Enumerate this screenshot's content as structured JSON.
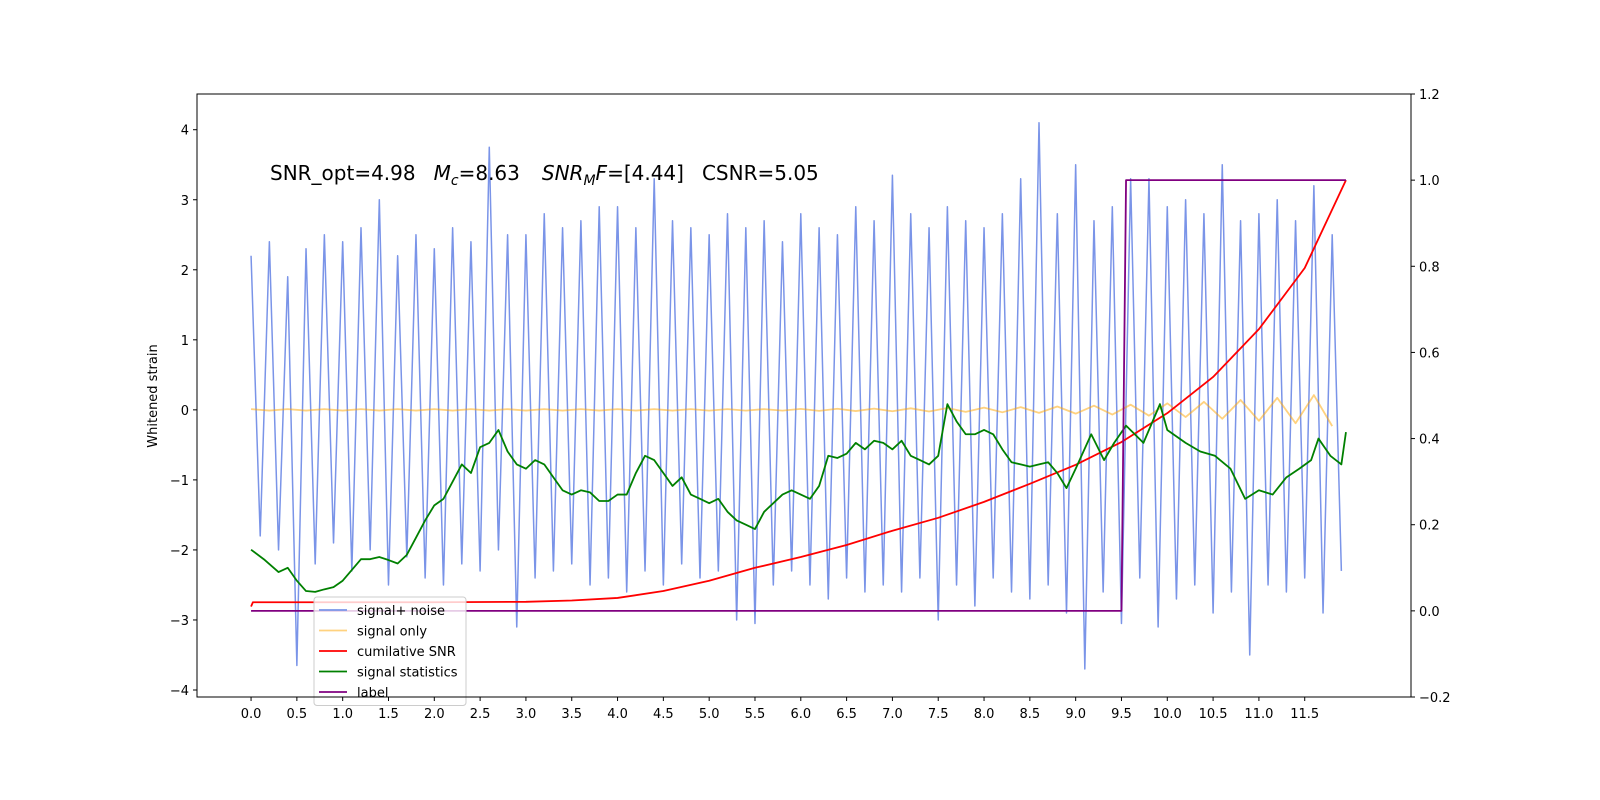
{
  "chart_data": {
    "type": "line",
    "ylabel": "Whitened strain",
    "xlim": [
      -0.59,
      12.66
    ],
    "ylim": [
      -4.1,
      4.51
    ],
    "y2lim": [
      -0.2,
      1.2
    ],
    "xticks": [
      {
        "value": 0,
        "label": "0.0"
      },
      0.5,
      {
        "value": 1,
        "label": "1.0"
      },
      1.5,
      {
        "value": 2,
        "label": "2.0"
      },
      2.5,
      {
        "value": 3,
        "label": "3.0"
      },
      3.5,
      {
        "value": 4,
        "label": "4.0"
      },
      4.5,
      {
        "value": 5,
        "label": "5.0"
      },
      5.5,
      {
        "value": 6,
        "label": "6.0"
      },
      6.5,
      {
        "value": 7,
        "label": "7.0"
      },
      7.5,
      {
        "value": 8,
        "label": "8.0"
      },
      8.5,
      {
        "value": 9,
        "label": "9.0"
      },
      9.5,
      {
        "value": 10,
        "label": "10.0"
      },
      10.5,
      {
        "value": 11,
        "label": "11.0"
      },
      11.5
    ],
    "yticks": [
      {
        "value": -4,
        "label": "−4"
      },
      {
        "value": -3,
        "label": "−3"
      },
      {
        "value": -2,
        "label": "−2"
      },
      {
        "value": -1,
        "label": "−1"
      },
      0,
      1,
      2,
      3,
      4
    ],
    "y2ticks": [
      {
        "value": -0.2,
        "label": "−0.2"
      },
      {
        "value": 0,
        "label": "0.0"
      },
      0.2,
      0.4,
      0.6,
      0.8,
      {
        "value": 1,
        "label": "1.0"
      },
      1.2
    ],
    "annotation": [
      "SNR_opt=4.98",
      "M",
      "c",
      "=8.63",
      "SNR",
      "M",
      "F",
      "=[4.44]",
      "CSNR=5.05"
    ],
    "legend": "lower left",
    "series": [
      {
        "name": "signal+ noise",
        "color": "#7a94e8",
        "x": [
          0,
          0.1,
          0.2,
          0.3,
          0.4,
          0.5,
          0.6,
          0.7,
          0.8,
          0.9,
          1,
          1.1,
          1.2,
          1.3,
          1.4,
          1.5,
          1.6,
          1.7,
          1.8,
          1.9,
          2,
          2.1,
          2.2,
          2.3,
          2.4,
          2.5,
          2.6,
          2.7,
          2.8,
          2.9,
          3,
          3.1,
          3.2,
          3.3,
          3.4,
          3.5,
          3.6,
          3.7,
          3.8,
          3.9,
          4,
          4.1,
          4.2,
          4.3,
          4.4,
          4.5,
          4.6,
          4.7,
          4.8,
          4.9,
          5,
          5.1,
          5.2,
          5.3,
          5.4,
          5.5,
          5.6,
          5.7,
          5.8,
          5.9,
          6,
          6.1,
          6.2,
          6.3,
          6.4,
          6.5,
          6.6,
          6.7,
          6.8,
          6.9,
          7,
          7.1,
          7.2,
          7.3,
          7.4,
          7.5,
          7.6,
          7.7,
          7.8,
          7.9,
          8,
          8.1,
          8.2,
          8.3,
          8.4,
          8.5,
          8.6,
          8.7,
          8.8,
          8.9,
          9,
          9.1,
          9.2,
          9.3,
          9.4,
          9.5,
          9.6,
          9.7,
          9.8,
          9.9,
          10,
          10.1,
          10.2,
          10.3,
          10.4,
          10.5,
          10.6,
          10.7,
          10.8,
          10.9,
          11,
          11.1,
          11.2,
          11.3,
          11.4,
          11.5,
          11.6,
          11.7,
          11.8,
          11.9
        ],
        "values": [
          2.2,
          -1.8,
          2.4,
          -2.0,
          1.9,
          -3.65,
          2.3,
          -2.2,
          2.5,
          -1.9,
          2.4,
          -2.3,
          2.6,
          -2.0,
          3.0,
          -2.5,
          2.2,
          -2.1,
          2.5,
          -2.4,
          2.3,
          -2.5,
          2.6,
          -2.2,
          2.4,
          -2.3,
          3.75,
          -2.0,
          2.5,
          -3.1,
          2.5,
          -2.4,
          2.8,
          -2.3,
          2.6,
          -2.2,
          2.7,
          -2.5,
          2.9,
          -2.4,
          2.9,
          -2.6,
          2.6,
          -2.3,
          3.3,
          -2.5,
          2.7,
          -2.2,
          2.6,
          -2.4,
          2.5,
          -2.3,
          2.8,
          -3.0,
          2.6,
          -3.05,
          2.7,
          -2.5,
          2.4,
          -2.3,
          2.8,
          -2.5,
          2.6,
          -2.7,
          2.5,
          -2.4,
          2.9,
          -2.6,
          2.7,
          -2.5,
          3.35,
          -2.6,
          2.8,
          -2.4,
          2.6,
          -3.0,
          2.9,
          -2.5,
          2.7,
          -2.8,
          2.6,
          -2.4,
          2.8,
          -2.6,
          3.3,
          -2.7,
          4.1,
          -2.5,
          2.8,
          -2.9,
          3.5,
          -3.7,
          2.7,
          -2.6,
          2.9,
          -3.05,
          3.3,
          -2.4,
          3.3,
          -3.1,
          2.9,
          -2.7,
          3.0,
          -2.5,
          2.8,
          -2.9,
          3.5,
          -2.6,
          2.7,
          -3.5,
          2.8,
          -2.5,
          3.0,
          -2.6,
          2.7,
          -2.4,
          3.2,
          -2.9,
          2.5,
          -2.3
        ]
      },
      {
        "name": "signal only",
        "color": "#ffa500",
        "x": [
          0,
          0.2,
          0.4,
          0.6,
          0.8,
          1,
          1.2,
          1.4,
          1.6,
          1.8,
          2,
          2.2,
          2.4,
          2.6,
          2.8,
          3,
          3.2,
          3.4,
          3.6,
          3.8,
          4,
          4.2,
          4.4,
          4.6,
          4.8,
          5,
          5.2,
          5.4,
          5.6,
          5.8,
          6,
          6.2,
          6.4,
          6.6,
          6.8,
          7,
          7.2,
          7.4,
          7.6,
          7.8,
          8,
          8.2,
          8.4,
          8.6,
          8.8,
          9,
          9.2,
          9.4,
          9.6,
          9.8,
          10,
          10.2,
          10.4,
          10.6,
          10.8,
          11,
          11.2,
          11.4,
          11.6,
          11.8
        ],
        "values": [
          0.01,
          -0.01,
          0.01,
          -0.01,
          0.01,
          -0.01,
          0.01,
          -0.01,
          0.01,
          -0.01,
          0.01,
          -0.01,
          0.01,
          -0.01,
          0.01,
          -0.01,
          0.01,
          -0.01,
          0.01,
          -0.01,
          0.01,
          -0.01,
          0.01,
          -0.01,
          0.01,
          -0.011,
          0.011,
          -0.011,
          0.011,
          -0.011,
          0.014,
          -0.015,
          0.016,
          -0.017,
          0.018,
          -0.02,
          0.022,
          -0.023,
          0.026,
          -0.029,
          0.032,
          -0.035,
          0.039,
          -0.043,
          0.048,
          -0.054,
          0.06,
          -0.067,
          0.074,
          -0.083,
          0.093,
          -0.103,
          0.114,
          -0.127,
          0.141,
          -0.156,
          0.172,
          -0.191,
          0.211,
          -0.232
        ]
      },
      {
        "name": "cumilative SNR",
        "color": "#ff0000",
        "axis": "y2",
        "x": [
          0,
          0.02,
          1,
          2,
          3,
          3.5,
          4,
          4.5,
          5,
          5.5,
          6,
          6.5,
          7,
          7.5,
          8,
          8.5,
          9,
          9.5,
          10,
          10.5,
          11,
          11.5,
          11.95
        ],
        "values": [
          0.01,
          0.02,
          0.02,
          0.02,
          0.021,
          0.024,
          0.03,
          0.046,
          0.07,
          0.1,
          0.125,
          0.153,
          0.186,
          0.216,
          0.253,
          0.295,
          0.339,
          0.392,
          0.459,
          0.543,
          0.654,
          0.796,
          1.0
        ]
      },
      {
        "name": "signal statistics",
        "color": "#008000",
        "axis": "y2",
        "x": [
          0,
          0.15,
          0.3,
          0.4,
          0.5,
          0.6,
          0.7,
          0.8,
          0.9,
          1,
          1.1,
          1.2,
          1.3,
          1.4,
          1.5,
          1.6,
          1.7,
          1.8,
          1.9,
          2,
          2.1,
          2.2,
          2.3,
          2.4,
          2.5,
          2.6,
          2.7,
          2.8,
          2.9,
          3,
          3.1,
          3.2,
          3.3,
          3.4,
          3.5,
          3.6,
          3.7,
          3.8,
          3.9,
          4,
          4.1,
          4.2,
          4.3,
          4.4,
          4.5,
          4.6,
          4.7,
          4.8,
          4.9,
          5,
          5.1,
          5.2,
          5.3,
          5.4,
          5.5,
          5.6,
          5.7,
          5.8,
          5.9,
          6,
          6.1,
          6.2,
          6.3,
          6.4,
          6.5,
          6.6,
          6.7,
          6.8,
          6.9,
          7,
          7.1,
          7.2,
          7.3,
          7.4,
          7.5,
          7.6,
          7.7,
          7.8,
          7.9,
          8,
          8.1,
          8.2,
          8.3,
          8.4,
          8.5,
          8.6,
          8.7,
          8.8,
          8.9,
          9,
          9.17,
          9.31,
          9.42,
          9.55,
          9.74,
          9.92,
          10,
          10.2,
          10.36,
          10.52,
          10.69,
          10.85,
          11,
          11.15,
          11.3,
          11.44,
          11.57,
          11.65,
          11.78,
          11.9,
          11.95
        ],
        "values": [
          0.142,
          0.118,
          0.09,
          0.1,
          0.07,
          0.046,
          0.044,
          0.05,
          0.055,
          0.07,
          0.095,
          0.12,
          0.12,
          0.125,
          0.118,
          0.11,
          0.13,
          0.17,
          0.21,
          0.245,
          0.26,
          0.3,
          0.34,
          0.32,
          0.38,
          0.39,
          0.42,
          0.37,
          0.34,
          0.33,
          0.35,
          0.34,
          0.31,
          0.28,
          0.27,
          0.28,
          0.275,
          0.255,
          0.255,
          0.27,
          0.27,
          0.32,
          0.36,
          0.35,
          0.32,
          0.29,
          0.31,
          0.27,
          0.26,
          0.25,
          0.26,
          0.23,
          0.21,
          0.2,
          0.19,
          0.23,
          0.25,
          0.27,
          0.28,
          0.27,
          0.26,
          0.29,
          0.36,
          0.355,
          0.365,
          0.39,
          0.375,
          0.395,
          0.39,
          0.375,
          0.395,
          0.36,
          0.35,
          0.34,
          0.36,
          0.48,
          0.44,
          0.41,
          0.41,
          0.42,
          0.41,
          0.375,
          0.345,
          0.34,
          0.335,
          0.34,
          0.345,
          0.32,
          0.285,
          0.33,
          0.41,
          0.35,
          0.39,
          0.43,
          0.39,
          0.48,
          0.42,
          0.39,
          0.37,
          0.36,
          0.33,
          0.26,
          0.28,
          0.27,
          0.31,
          0.33,
          0.35,
          0.4,
          0.36,
          0.34,
          0.415
        ]
      },
      {
        "name": "label",
        "color": "#800080",
        "axis": "y2",
        "x": [
          0,
          9.5,
          9.55,
          11.95
        ],
        "values": [
          0,
          0,
          1,
          1
        ]
      }
    ]
  }
}
